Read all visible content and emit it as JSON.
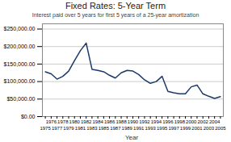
{
  "chart_data": {
    "type": "line",
    "title": "Fixed Rates: 5-Year Term",
    "subtitle": "Interest paid over 5 years for first 5 years of a 25-year amortization",
    "xlabel": "Year",
    "x": [
      1975,
      1976,
      1977,
      1978,
      1979,
      1980,
      1981,
      1982,
      1983,
      1984,
      1985,
      1986,
      1987,
      1988,
      1989,
      1990,
      1991,
      1992,
      1993,
      1994,
      1995,
      1996,
      1997,
      1998,
      1999,
      2000,
      2001,
      2002,
      2003,
      2004,
      2005
    ],
    "values": [
      128000,
      122000,
      107000,
      115000,
      130000,
      160000,
      188000,
      210000,
      135000,
      132000,
      128000,
      118000,
      110000,
      125000,
      132000,
      130000,
      120000,
      105000,
      95000,
      100000,
      115000,
      72000,
      68000,
      65000,
      65000,
      85000,
      90000,
      65000,
      58000,
      52000,
      57000
    ],
    "color": "#1a3a6b",
    "xlim": [
      1974.5,
      2005.5
    ],
    "xticks": [
      1975,
      1976,
      1977,
      1978,
      1979,
      1980,
      1981,
      1982,
      1983,
      1984,
      1985,
      1986,
      1987,
      1988,
      1989,
      1990,
      1991,
      1992,
      1993,
      1994,
      1995,
      1996,
      1997,
      1998,
      1999,
      2000,
      2001,
      2002,
      2003,
      2004,
      2005
    ],
    "ylim": [
      0,
      265000
    ],
    "yticks": [
      {
        "value": 0,
        "label": "$0.00"
      },
      {
        "value": 50000,
        "label": "$50,000.00"
      },
      {
        "value": 100000,
        "label": "$100,000.00"
      },
      {
        "value": 150000,
        "label": "$150,000.00"
      },
      {
        "value": 200000,
        "label": "$200,000.00"
      },
      {
        "value": 250000,
        "label": "$250,000.00"
      }
    ],
    "grid": true
  }
}
